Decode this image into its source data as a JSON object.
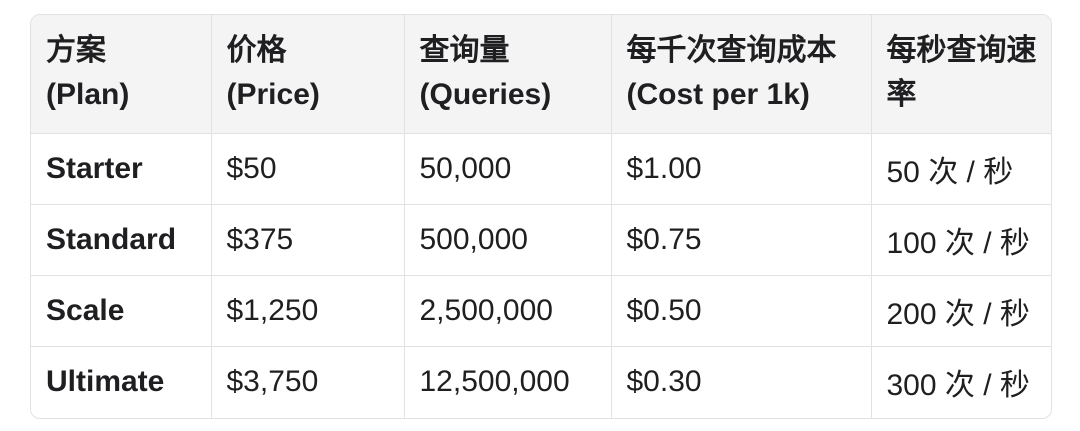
{
  "colors": {
    "header_bg": "#f4f4f5",
    "border": "#e2e2e5",
    "text": "#1f1f21"
  },
  "table": {
    "columns": [
      {
        "zh": "方案",
        "en": "(Plan)"
      },
      {
        "zh": "价格",
        "en": "(Price)"
      },
      {
        "zh": "查询量",
        "en": "(Queries)"
      },
      {
        "zh": "每千次查询成本",
        "en": "(Cost per 1k)"
      },
      {
        "zh": "每秒查询速率",
        "en": ""
      }
    ],
    "rows": [
      {
        "plan": "Starter",
        "price": "$50",
        "queries": "50,000",
        "cost_per_1k": "$1.00",
        "rate": "50 次 / 秒"
      },
      {
        "plan": "Standard",
        "price": "$375",
        "queries": "500,000",
        "cost_per_1k": "$0.75",
        "rate": "100 次 / 秒"
      },
      {
        "plan": "Scale",
        "price": "$1,250",
        "queries": "2,500,000",
        "cost_per_1k": "$0.50",
        "rate": "200 次 / 秒"
      },
      {
        "plan": "Ultimate",
        "price": "$3,750",
        "queries": "12,500,000",
        "cost_per_1k": "$0.30",
        "rate": "300 次 / 秒"
      }
    ]
  }
}
